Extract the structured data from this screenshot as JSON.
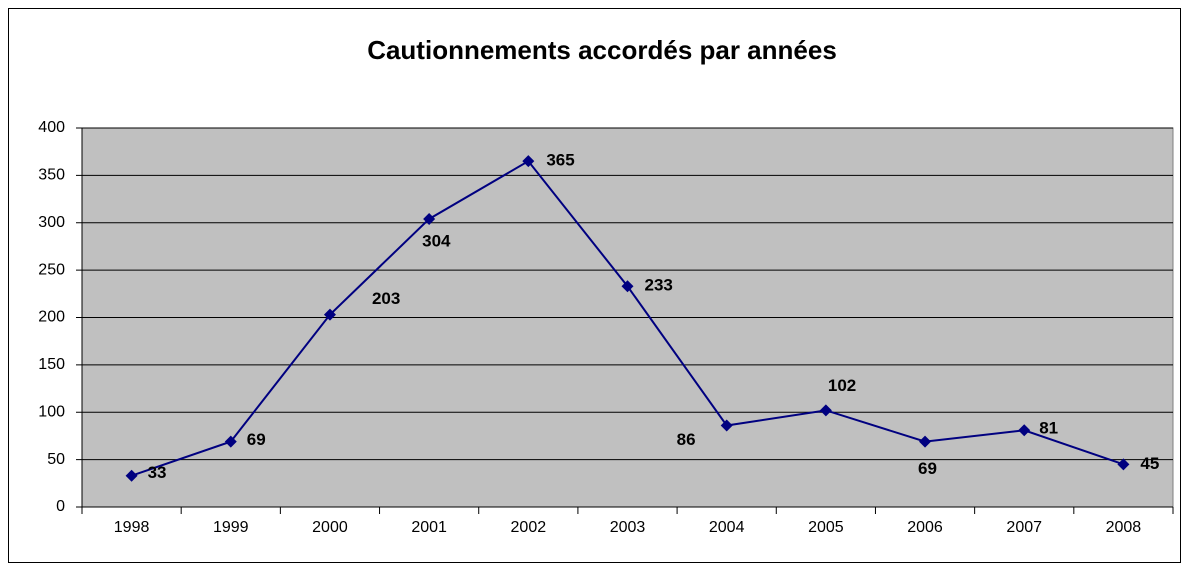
{
  "chart_data": {
    "type": "line",
    "title": "Cautionnements accordés par années",
    "categories": [
      "1998",
      "1999",
      "2000",
      "2001",
      "2002",
      "2003",
      "2004",
      "2005",
      "2006",
      "2007",
      "2008"
    ],
    "series": [
      {
        "name": "Cautionnements",
        "color": "#000080",
        "values": [
          33,
          69,
          203,
          304,
          365,
          233,
          86,
          102,
          69,
          81,
          45
        ]
      }
    ],
    "ylim": [
      0,
      400
    ],
    "yticks": [
      0,
      50,
      100,
      150,
      200,
      250,
      300,
      350,
      400
    ],
    "grid": true,
    "plot_background": "#c0c0c0"
  }
}
